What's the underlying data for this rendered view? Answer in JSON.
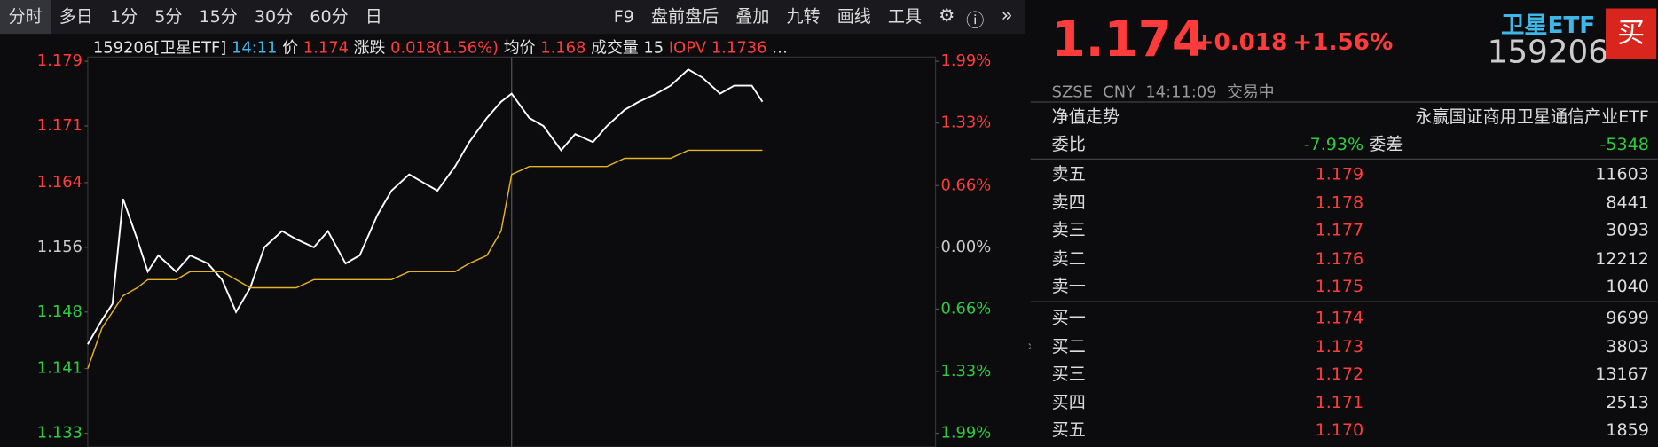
{
  "toolbar": {
    "tabs": [
      "分时",
      "多日",
      "1分",
      "5分",
      "15分",
      "30分",
      "60分",
      "日"
    ],
    "tools": [
      "F9",
      "盘前盘后",
      "叠加",
      "九转",
      "画线",
      "工具"
    ]
  },
  "info": {
    "code": "159206[卫星ETF]",
    "time": "14:11",
    "price": "1.174",
    "change_label": "涨跌",
    "change": "0.018(1.56%)",
    "avg": "1.168",
    "volume_label": "成交量",
    "volume": "15",
    "iopv_label": "IOPV",
    "iopv": "1.1736",
    "more": "…"
  },
  "chart_data": {
    "type": "line",
    "x": [
      0,
      4,
      7,
      10,
      14,
      17,
      20,
      25,
      29,
      34,
      38,
      42,
      46,
      50,
      55,
      59,
      64,
      68,
      73,
      77,
      82,
      86,
      91,
      95,
      99,
      104,
      108,
      113,
      117,
      120,
      125,
      129,
      134,
      138,
      143,
      147,
      152,
      156,
      161,
      165,
      170,
      174,
      179,
      183,
      188,
      191
    ],
    "series": [
      {
        "name": "价",
        "color": "#ffffff",
        "values": [
          1.144,
          1.147,
          1.149,
          1.162,
          1.157,
          1.153,
          1.155,
          1.153,
          1.155,
          1.154,
          1.152,
          1.148,
          1.151,
          1.156,
          1.158,
          1.157,
          1.156,
          1.158,
          1.154,
          1.155,
          1.16,
          1.163,
          1.165,
          1.164,
          1.163,
          1.166,
          1.169,
          1.172,
          1.174,
          1.175,
          1.172,
          1.171,
          1.168,
          1.17,
          1.169,
          1.171,
          1.173,
          1.174,
          1.175,
          1.176,
          1.178,
          1.177,
          1.175,
          1.176,
          1.176,
          1.174
        ]
      },
      {
        "name": "均价",
        "color": "#e6b422",
        "values": [
          1.141,
          1.146,
          1.148,
          1.15,
          1.151,
          1.152,
          1.152,
          1.152,
          1.153,
          1.153,
          1.153,
          1.152,
          1.151,
          1.151,
          1.151,
          1.151,
          1.152,
          1.152,
          1.152,
          1.152,
          1.152,
          1.152,
          1.153,
          1.153,
          1.153,
          1.153,
          1.154,
          1.155,
          1.158,
          1.165,
          1.166,
          1.166,
          1.166,
          1.166,
          1.166,
          1.166,
          1.167,
          1.167,
          1.167,
          1.167,
          1.168,
          1.168,
          1.168,
          1.168,
          1.168,
          1.168
        ]
      }
    ],
    "xlim": [
      0,
      240
    ],
    "ylim": [
      1.133,
      1.179
    ],
    "yticks": [
      1.179,
      1.171,
      1.164,
      1.156,
      1.148,
      1.141,
      1.133
    ],
    "y2lim": [
      -1.99,
      1.99
    ],
    "y2ticks": [
      {
        "value": 1.99,
        "label": "1.99%"
      },
      {
        "value": 1.33,
        "label": "1.33%"
      },
      {
        "value": 0.66,
        "label": "0.66%"
      },
      {
        "value": 0,
        "label": "0.00%"
      },
      {
        "value": -0.66,
        "label": "0.66%"
      },
      {
        "value": -1.33,
        "label": "1.33%"
      },
      {
        "value": -1.99,
        "label": "1.99%"
      }
    ],
    "up_color": "#ff3c3c",
    "down_color": "#2ecc40",
    "grid": false
  },
  "quote": {
    "price": "1.174",
    "change": "+0.018",
    "pct": "+1.56%",
    "name": "卫星ETF",
    "code": "159206",
    "buy": "买",
    "market": "SZSE",
    "currency": "CNY",
    "time": "14:11:09",
    "status": "交易中",
    "nav_label": "净值走势",
    "fund_name": "永赢国证商用卫星通信产业ETF",
    "ratio_label": "委比",
    "ratio": "-7.93%",
    "diff_label": "委差",
    "diff": "-5348",
    "asks": [
      {
        "label": "卖五",
        "price": "1.179",
        "vol": "11603"
      },
      {
        "label": "卖四",
        "price": "1.178",
        "vol": "8441"
      },
      {
        "label": "卖三",
        "price": "1.177",
        "vol": "3093"
      },
      {
        "label": "卖二",
        "price": "1.176",
        "vol": "12212"
      },
      {
        "label": "卖一",
        "price": "1.175",
        "vol": "1040"
      }
    ],
    "bids": [
      {
        "label": "买一",
        "price": "1.174",
        "vol": "9699"
      },
      {
        "label": "买二",
        "price": "1.173",
        "vol": "3803"
      },
      {
        "label": "买三",
        "price": "1.172",
        "vol": "13167"
      },
      {
        "label": "买四",
        "price": "1.171",
        "vol": "2513"
      },
      {
        "label": "买五",
        "price": "1.170",
        "vol": "1859"
      }
    ]
  }
}
